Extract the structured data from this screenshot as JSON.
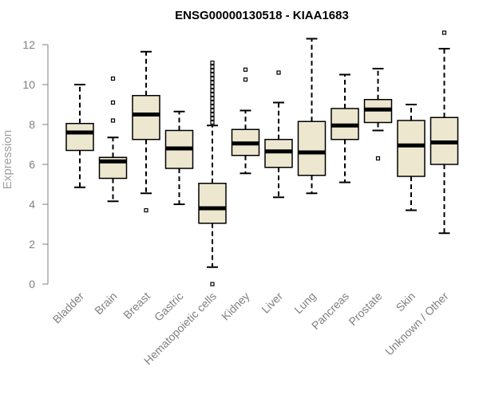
{
  "chart_data": {
    "type": "box",
    "title": "ENSG00000130518 - KIAA1683",
    "xlabel": "",
    "ylabel": "Expression",
    "ylim": [
      0,
      12
    ],
    "yticks": [
      0,
      2,
      4,
      6,
      8,
      10,
      12
    ],
    "grid": false,
    "colors": {
      "box_fill": "#ede7cf",
      "box_stroke": "#000000",
      "axis": "#808080"
    },
    "categories": [
      "Bladder",
      "Brain",
      "Breast",
      "Gastric",
      "Hematopoietic cells",
      "Kidney",
      "Liver",
      "Lung",
      "Pancreas",
      "Prostate",
      "Skin",
      "Unknown / Other"
    ],
    "boxes": [
      {
        "category": "Bladder",
        "whisker_low": 4.85,
        "q1": 6.7,
        "median": 7.6,
        "q3": 8.05,
        "whisker_high": 10.0,
        "outliers": []
      },
      {
        "category": "Brain",
        "whisker_low": 4.15,
        "q1": 5.3,
        "median": 6.15,
        "q3": 6.35,
        "whisker_high": 7.35,
        "outliers": [
          8.2,
          9.1,
          10.3
        ]
      },
      {
        "category": "Breast",
        "whisker_low": 4.55,
        "q1": 7.25,
        "median": 8.5,
        "q3": 9.45,
        "whisker_high": 11.65,
        "outliers": [
          3.7
        ]
      },
      {
        "category": "Gastric",
        "whisker_low": 4.0,
        "q1": 5.8,
        "median": 6.8,
        "q3": 7.7,
        "whisker_high": 8.65,
        "outliers": []
      },
      {
        "category": "Hematopoietic cells",
        "whisker_low": 0.85,
        "q1": 3.05,
        "median": 3.8,
        "q3": 5.05,
        "whisker_high": 7.95,
        "outliers": [
          0.0,
          8.1,
          8.3,
          8.5,
          8.7,
          8.9,
          9.1,
          9.3,
          9.5,
          9.7,
          9.9,
          10.1,
          10.3,
          10.5,
          10.7,
          10.9,
          11.1
        ]
      },
      {
        "category": "Kidney",
        "whisker_low": 5.55,
        "q1": 6.45,
        "median": 7.05,
        "q3": 7.75,
        "whisker_high": 8.7,
        "outliers": [
          10.25,
          10.75
        ]
      },
      {
        "category": "Liver",
        "whisker_low": 4.35,
        "q1": 5.85,
        "median": 6.65,
        "q3": 7.25,
        "whisker_high": 9.1,
        "outliers": [
          10.6
        ]
      },
      {
        "category": "Lung",
        "whisker_low": 4.55,
        "q1": 5.45,
        "median": 6.6,
        "q3": 8.15,
        "whisker_high": 12.3,
        "outliers": []
      },
      {
        "category": "Pancreas",
        "whisker_low": 5.1,
        "q1": 7.25,
        "median": 7.95,
        "q3": 8.8,
        "whisker_high": 10.5,
        "outliers": []
      },
      {
        "category": "Prostate",
        "whisker_low": 7.7,
        "q1": 8.1,
        "median": 8.75,
        "q3": 9.25,
        "whisker_high": 10.8,
        "outliers": [
          6.3
        ]
      },
      {
        "category": "Skin",
        "whisker_low": 3.7,
        "q1": 5.4,
        "median": 6.95,
        "q3": 8.2,
        "whisker_high": 9.0,
        "outliers": []
      },
      {
        "category": "Unknown / Other",
        "whisker_low": 2.55,
        "q1": 6.0,
        "median": 7.1,
        "q3": 8.35,
        "whisker_high": 11.8,
        "outliers": [
          12.6
        ]
      }
    ]
  }
}
